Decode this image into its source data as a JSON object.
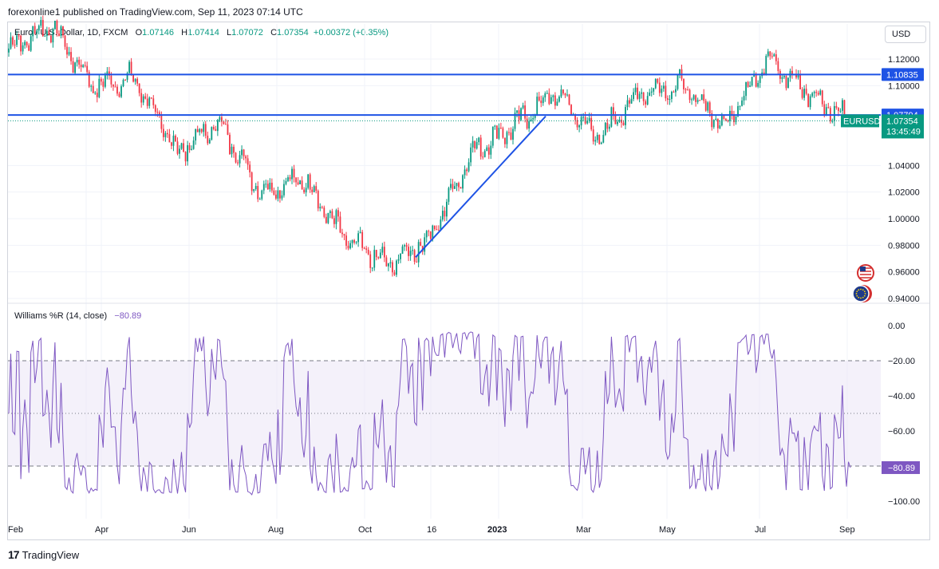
{
  "header": {
    "publisher_line": "forexonline1 published on TradingView.com, Sep 11, 2023 07:14 UTC"
  },
  "symbol": {
    "name": "Euro / U.S. Dollar, 1D, FXCM",
    "o_label": "O",
    "o": "1.07146",
    "h_label": "H",
    "h": "1.07414",
    "l_label": "L",
    "l": "1.07072",
    "c_label": "C",
    "c": "1.07354",
    "change": "+0.00372 (+0.35%)"
  },
  "currency_button": "USD",
  "indicator": {
    "label": "Williams %R (14, close)",
    "value": "−80.89"
  },
  "footer": {
    "brand": "TradingView",
    "logo": "17"
  },
  "colors": {
    "up": "#089981",
    "down": "#f23645",
    "line": "#1e53e5",
    "wr": "#7e57c2",
    "band": "#ede7f6",
    "grid": "#f0f3fa"
  },
  "icons": [
    "us-flag-icon",
    "eu-flag-icon",
    "tradingview-logo-icon"
  ],
  "chart_data": [
    {
      "type": "candlestick",
      "title": "Euro / U.S. Dollar, 1D, FXCM",
      "price_axis_ticks": [
        "1.12000",
        "1.10000",
        "1.04000",
        "1.02000",
        "1.00000",
        "0.98000",
        "0.96000",
        "0.94000"
      ],
      "time_axis_labels": [
        "Feb",
        "Apr",
        "Jun",
        "Aug",
        "Oct",
        "16",
        "2023",
        "Mar",
        "May",
        "Jul",
        "Sep"
      ],
      "ylim": [
        0.935,
        1.13
      ],
      "horizontal_lines": [
        {
          "value": 1.10835,
          "label": "1.10835"
        },
        {
          "value": 1.07794,
          "label": "1.07794"
        }
      ],
      "price_tags": [
        {
          "label": "EURUSD",
          "value": "1.07354",
          "countdown": "13:45:49"
        }
      ],
      "trendline": {
        "from": [
          "Nov 2022",
          0.971
        ],
        "to": [
          "Feb 2023",
          1.077
        ]
      },
      "approx_close_path": [
        [
          "Jan 2022",
          1.128
        ],
        [
          "Feb 2022",
          1.145
        ],
        [
          "Mar 2022",
          1.1
        ],
        [
          "Apr 2022",
          1.105
        ],
        [
          "May 2022",
          1.05
        ],
        [
          "Jun 2022",
          1.072
        ],
        [
          "Jul 2022",
          1.02
        ],
        [
          "Aug 2022",
          1.03
        ],
        [
          "Sep 2022",
          0.985
        ],
        [
          "Oct 2022",
          0.965
        ],
        [
          "Nov 2022",
          0.985
        ],
        [
          "Dec 2022",
          1.05
        ],
        [
          "Jan 2023",
          1.07
        ],
        [
          "Feb 2023",
          1.095
        ],
        [
          "Mar 2023",
          1.06
        ],
        [
          "Apr 2023",
          1.095
        ],
        [
          "May 2023",
          1.1
        ],
        [
          "Jun 2023",
          1.07
        ],
        [
          "Jul 2023",
          1.12
        ],
        [
          "Aug 2023",
          1.095
        ],
        [
          "Sep 2023",
          1.0735
        ]
      ]
    },
    {
      "type": "line",
      "title": "Williams %R (14, close)",
      "axis_ticks": [
        "0.00",
        "−20.00",
        "−40.00",
        "−60.00",
        "−100.00"
      ],
      "ylim": [
        -100,
        0
      ],
      "bands": [
        -20,
        -80
      ],
      "midline": -50,
      "last_value": -80.89,
      "last_label": "−80.89"
    }
  ]
}
